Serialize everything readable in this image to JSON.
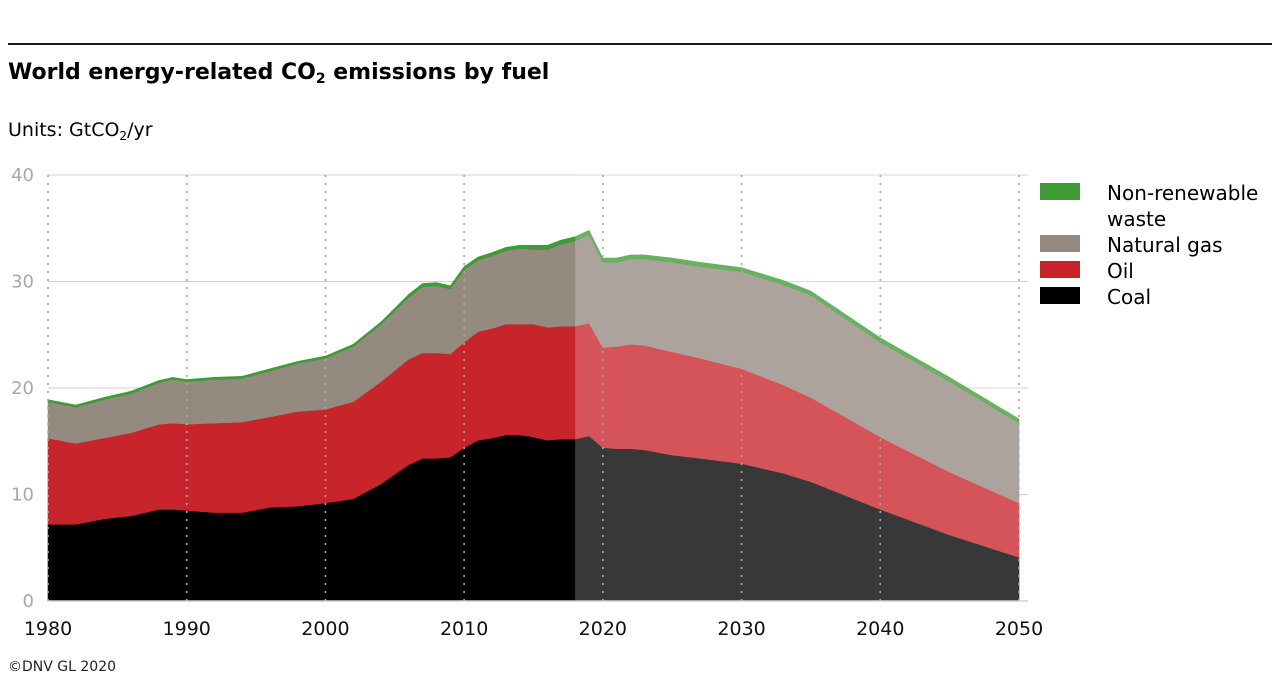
{
  "header": {
    "title_main": "World energy-related CO",
    "title_sub": "2",
    "title_tail": " emissions by fuel",
    "units_main": "Units: GtCO",
    "units_sub": "2",
    "units_tail": "/yr"
  },
  "footer": {
    "copyright": "©DNV GL 2020"
  },
  "colors": {
    "coal": "#000000",
    "oil": "#c8242b",
    "gas": "#958a80",
    "waste": "#3e9b35",
    "forecast_overlay": "#ffffff"
  },
  "chart_data": {
    "type": "area",
    "stacked": true,
    "title": "World energy-related CO2 emissions by fuel",
    "ylabel": "Units: GtCO2/yr",
    "xlabel": "",
    "xlim": [
      1980,
      2050
    ],
    "ylim": [
      0,
      40
    ],
    "x_ticks": [
      "1980",
      "1990",
      "2000",
      "2010",
      "2020",
      "2030",
      "2040",
      "2050"
    ],
    "y_ticks": [
      "0",
      "10",
      "20",
      "30",
      "40"
    ],
    "grid": {
      "horizontal": true,
      "vertical_dotted": true
    },
    "forecast_start": 2018,
    "legend_position": "right",
    "x": [
      1980,
      1982,
      1984,
      1986,
      1988,
      1989,
      1990,
      1992,
      1994,
      1996,
      1998,
      2000,
      2002,
      2004,
      2006,
      2007,
      2008,
      2009,
      2010,
      2011,
      2012,
      2013,
      2014,
      2015,
      2016,
      2017,
      2018,
      2019,
      2020,
      2021,
      2022,
      2023,
      2025,
      2027,
      2030,
      2033,
      2035,
      2040,
      2045,
      2050
    ],
    "series": [
      {
        "name": "Coal",
        "key": "coal",
        "values": [
          7.2,
          7.2,
          7.7,
          8.0,
          8.6,
          8.6,
          8.5,
          8.3,
          8.3,
          8.8,
          8.9,
          9.2,
          9.6,
          11.0,
          12.8,
          13.4,
          13.4,
          13.5,
          14.4,
          15.1,
          15.3,
          15.6,
          15.6,
          15.4,
          15.1,
          15.2,
          15.2,
          15.5,
          14.4,
          14.3,
          14.3,
          14.2,
          13.7,
          13.4,
          12.9,
          12.0,
          11.2,
          8.6,
          6.2,
          4.1
        ]
      },
      {
        "name": "Oil",
        "key": "oil",
        "values": [
          8.1,
          7.6,
          7.6,
          7.8,
          8.0,
          8.1,
          8.1,
          8.4,
          8.5,
          8.5,
          8.9,
          8.8,
          9.1,
          9.6,
          9.9,
          9.9,
          9.9,
          9.7,
          9.9,
          10.2,
          10.3,
          10.4,
          10.4,
          10.6,
          10.6,
          10.6,
          10.6,
          10.6,
          9.4,
          9.6,
          9.8,
          9.8,
          9.7,
          9.4,
          8.9,
          8.3,
          7.9,
          6.8,
          5.9,
          5.1
        ]
      },
      {
        "name": "Natural gas",
        "key": "gas",
        "values": [
          3.4,
          3.4,
          3.6,
          3.7,
          3.9,
          4.1,
          4.0,
          4.1,
          4.1,
          4.3,
          4.5,
          4.8,
          5.2,
          5.4,
          5.8,
          6.2,
          6.3,
          6.1,
          6.8,
          6.7,
          6.8,
          6.9,
          7.1,
          7.0,
          7.3,
          7.7,
          8.0,
          8.3,
          8.0,
          7.9,
          8.0,
          8.1,
          8.4,
          8.6,
          9.1,
          9.4,
          9.6,
          8.9,
          8.5,
          7.5
        ]
      },
      {
        "name": "Non-renewable waste",
        "key": "waste",
        "values": [
          0.2,
          0.2,
          0.2,
          0.2,
          0.2,
          0.2,
          0.2,
          0.2,
          0.2,
          0.2,
          0.2,
          0.2,
          0.2,
          0.2,
          0.3,
          0.3,
          0.3,
          0.3,
          0.3,
          0.3,
          0.3,
          0.3,
          0.3,
          0.4,
          0.4,
          0.4,
          0.4,
          0.4,
          0.4,
          0.4,
          0.4,
          0.4,
          0.4,
          0.4,
          0.4,
          0.4,
          0.4,
          0.4,
          0.4,
          0.4
        ]
      }
    ],
    "legend": [
      "Non-renewable waste",
      "Natural gas",
      "Oil",
      "Coal"
    ]
  }
}
